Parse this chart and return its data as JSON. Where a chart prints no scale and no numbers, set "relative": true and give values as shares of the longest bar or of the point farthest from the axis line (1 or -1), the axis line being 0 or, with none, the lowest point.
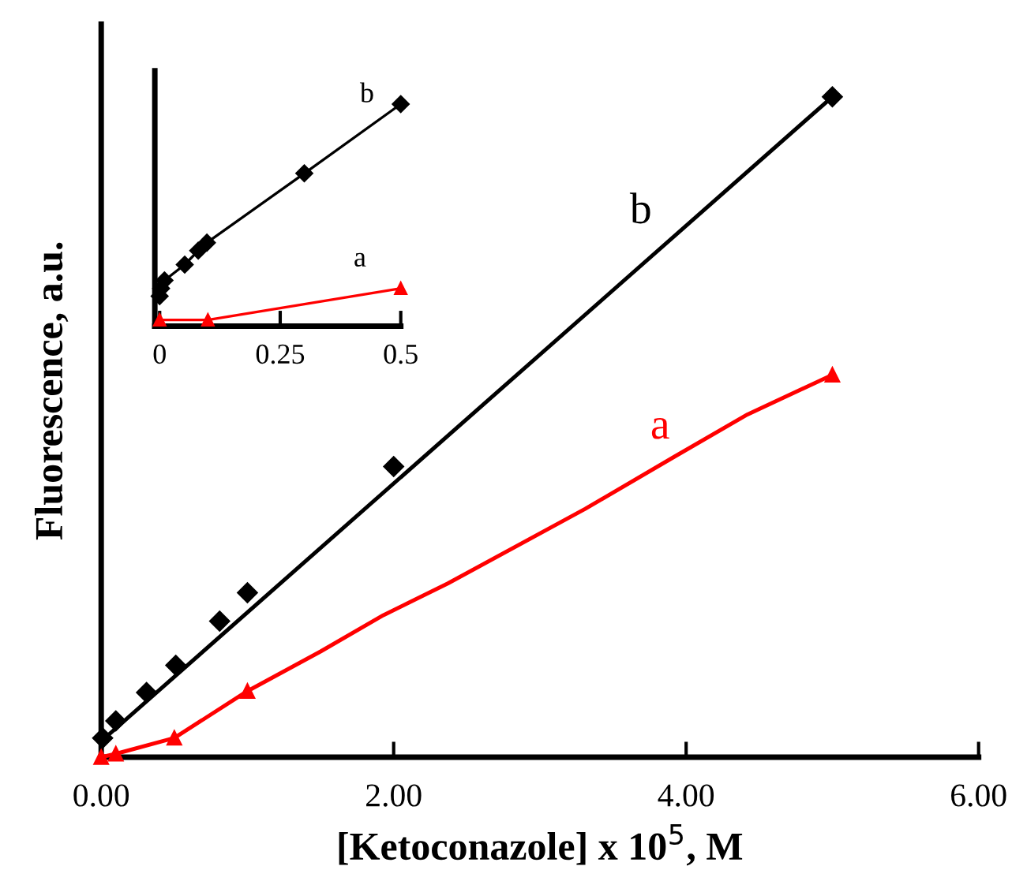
{
  "chart_data": [
    {
      "type": "line",
      "relative": true,
      "xlabel": "[Ketoconazole] x 10$^{5}$, M",
      "ylabel": "Fluorescence, a.u.",
      "xlim": [
        0,
        6.0
      ],
      "xticks": [
        {
          "value": 0,
          "label": "0.00"
        },
        {
          "value": 2.0,
          "label": "2.00"
        },
        {
          "value": 4.0,
          "label": "4.00"
        },
        {
          "value": 6.0,
          "label": "6.00"
        }
      ],
      "grid": false,
      "legend": false,
      "series": [
        {
          "name": "a",
          "color": "#ff0000",
          "marker": "none",
          "x": [
            0,
            0.1,
            0.5,
            1.0,
            1.5,
            1.93,
            2.37,
            3.31,
            3.92,
            4.42,
            5.0
          ],
          "values": [
            0,
            0.005,
            0.029,
            0.1,
            0.16,
            0.215,
            0.263,
            0.376,
            0.455,
            0.519,
            0.579
          ]
        },
        {
          "type": "scatter",
          "color": "#ff0000",
          "marker": "triangle",
          "x": [
            0,
            0.1,
            0.5,
            1.0,
            5.0
          ],
          "values": [
            0,
            0.005,
            0.029,
            0.1,
            0.579
          ]
        },
        {
          "name": "b",
          "color": "#000000",
          "marker": "none",
          "x": [
            0,
            5.0
          ],
          "values": [
            0.024,
            1
          ]
        },
        {
          "type": "scatter",
          "color": "#000000",
          "marker": "diamond",
          "x": [
            0.01,
            0.1,
            0.31,
            0.51,
            0.81,
            1.0,
            2.0,
            5.0
          ],
          "values": [
            0.029,
            0.055,
            0.098,
            0.139,
            0.206,
            0.249,
            0.44,
            1
          ]
        }
      ]
    },
    {
      "type": "line",
      "relative": true,
      "xlim": [
        -0.01,
        0.5
      ],
      "xticks": [
        0,
        0.25,
        0.5
      ],
      "grid": false,
      "legend": false,
      "series": [
        {
          "name": "a",
          "color": "#ff0000",
          "marker": "triangle",
          "x": [
            0,
            0.1,
            0.5
          ],
          "values": [
            0.028,
            0.028,
            0.17
          ]
        },
        {
          "name": "b",
          "color": "#000000",
          "marker": "diamond",
          "x": [
            0,
            0.003,
            0.01,
            0.052,
            0.08,
            0.098,
            0.3,
            0.5
          ],
          "values": [
            0.135,
            0.17,
            0.206,
            0.277,
            0.34,
            0.376,
            0.688,
            1
          ]
        }
      ]
    }
  ]
}
